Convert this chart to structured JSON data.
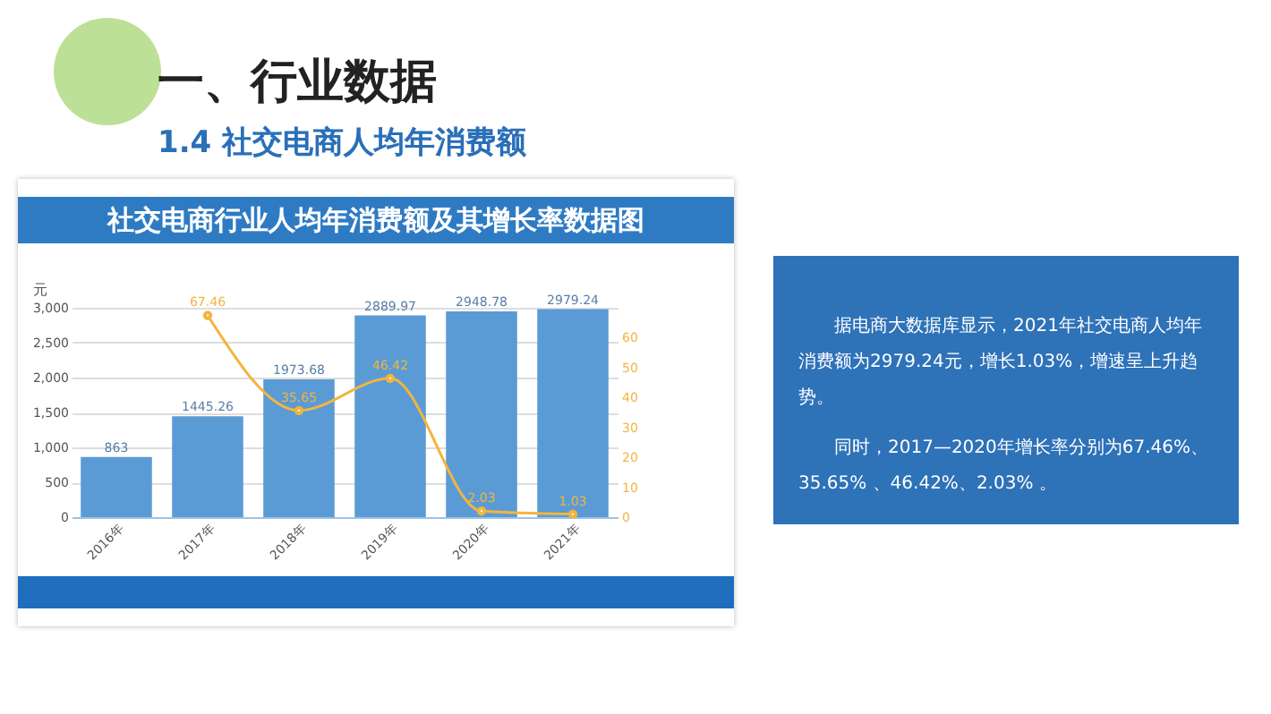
{
  "chart_data": {
    "type": "bar",
    "title": "社交电商行业人均年消费额及其增长率数据图",
    "subtitle": "1.4 社交电商人均年消费额",
    "ylabel": "元",
    "annotations": [
      "一、行业数据",
      "据电商大数据库显示，2021年社交电商人均年消费额为2979.24元，增长1.03%，增速呈上升趋势。",
      "同时，2017—2020年增长率分别为67.46%、35.65% 、46.42%、2.03% 。"
    ],
    "categories": [
      "2016年",
      "2017年",
      "2018年",
      "2019年",
      "2020年",
      "2021年"
    ],
    "series": [
      {
        "color": "#5b9bd5",
        "values": [
          863,
          1445.26,
          1973.68,
          2889.97,
          2948.78,
          2979.24
        ]
      },
      {
        "type": "line",
        "axis": "y2",
        "color": "#f2b53e",
        "values": [
          null,
          67.46,
          35.65,
          46.42,
          2.03,
          1.03
        ]
      }
    ],
    "ylim": [
      0,
      3000
    ],
    "yticks": [
      0,
      {
        "value": 500,
        "label": "500"
      },
      {
        "value": 1000,
        "label": "1,000"
      },
      {
        "value": 1500,
        "label": "1,500"
      },
      {
        "value": 2000,
        "label": "2,000"
      },
      {
        "value": 2500,
        "label": "2,500"
      },
      {
        "value": 3000,
        "label": "3,000"
      }
    ],
    "y2lim": [
      0,
      70
    ],
    "y2ticks": [
      0,
      10,
      20,
      30,
      40,
      50,
      60
    ],
    "data_labels": true,
    "grid": "y",
    "marker": "circle"
  }
}
